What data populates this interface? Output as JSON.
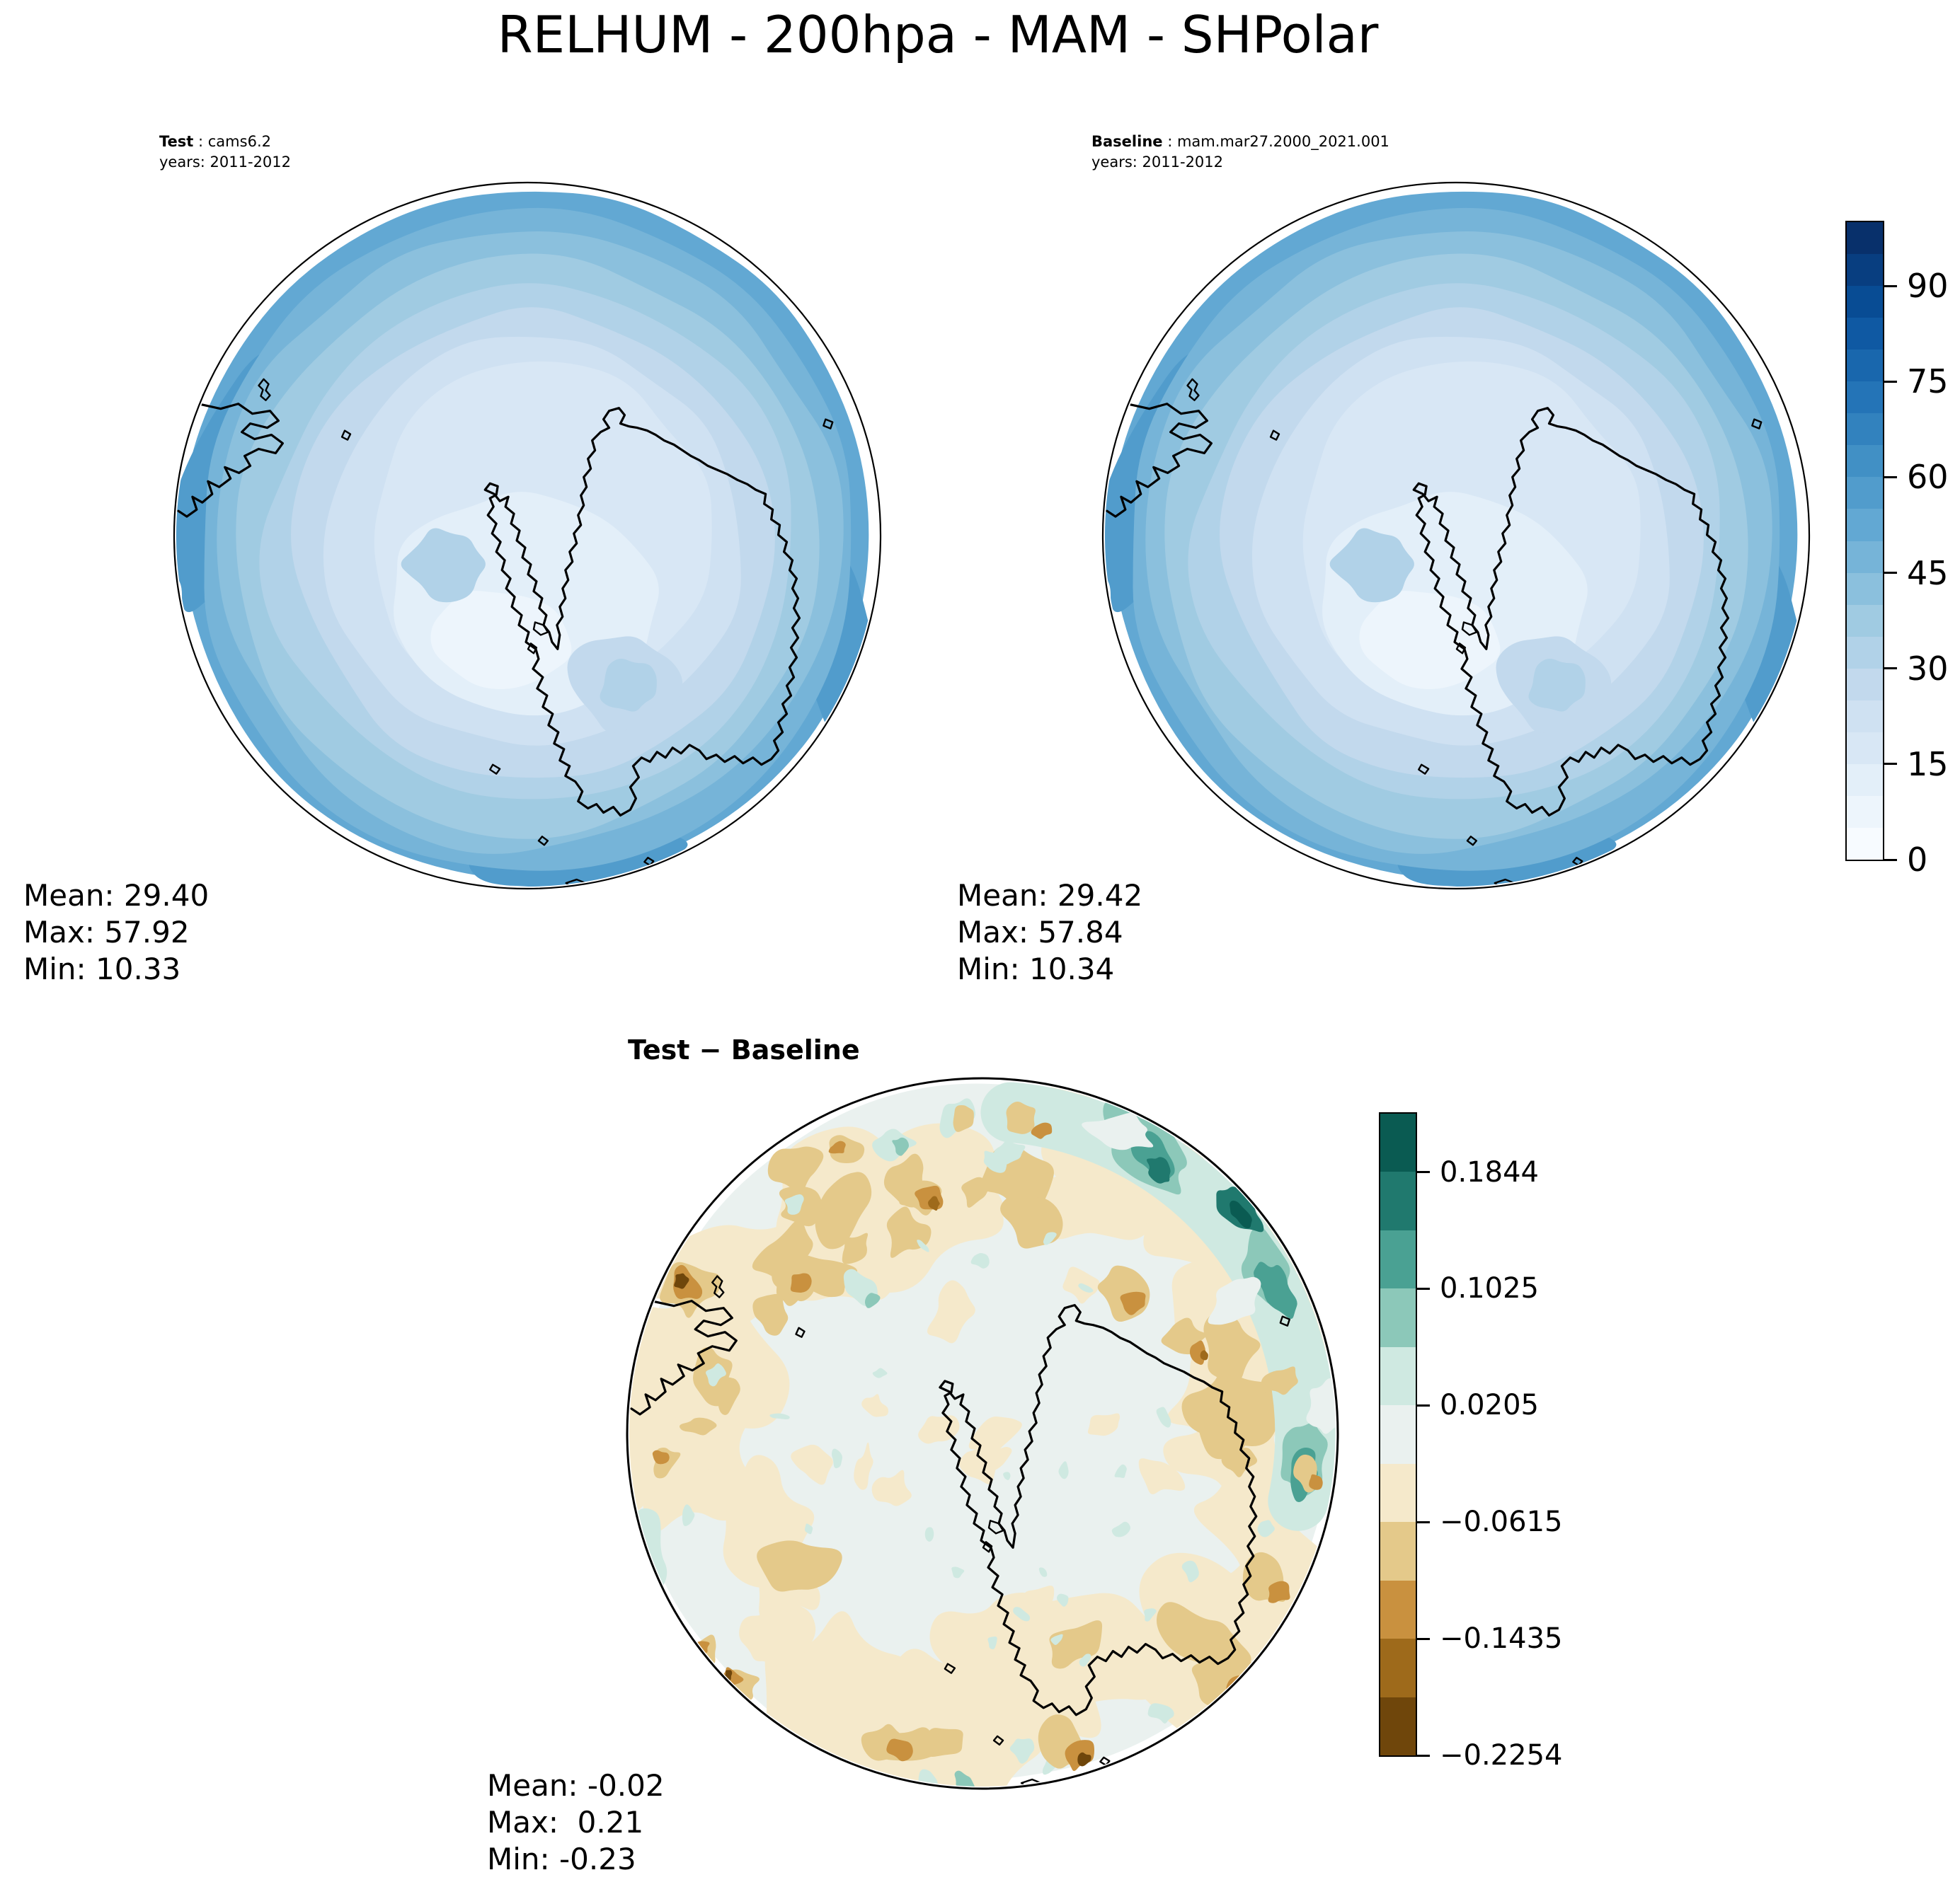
{
  "title": "RELHUM - 200hpa - MAM - SHPolar",
  "figure": {
    "variable": "RELHUM",
    "level": "200hpa",
    "season": "MAM",
    "region": "SHPolar"
  },
  "panels": {
    "test": {
      "label": "Test",
      "separator": " : ",
      "name": "cams6.2",
      "years": "years: 2011-2012",
      "stats": {
        "mean": "Mean: 29.40",
        "max": "Max: 57.92",
        "min": "Min: 10.33"
      }
    },
    "baseline": {
      "label": "Baseline",
      "separator": " : ",
      "name": "mam.mar27.2000_2021.001",
      "years": "years: 2011-2012",
      "stats": {
        "mean": "Mean: 29.42",
        "max": "Max: 57.84",
        "min": "Min: 10.34"
      }
    },
    "diff": {
      "title": "Test − Baseline",
      "stats": {
        "mean": "Mean: -0.02",
        "max": "Max:  0.21",
        "min": "Min: -0.23"
      }
    }
  },
  "colorbars": {
    "relhum": {
      "vmin": 0,
      "vmax": 100,
      "colors_top_to_bottom": [
        "#08306b",
        "#083e80",
        "#084c94",
        "#0f59a3",
        "#1967ad",
        "#2474b7",
        "#3282be",
        "#4190c5",
        "#519ccc",
        "#62a8d3",
        "#76b4d8",
        "#8bc0dd",
        "#a0cbe2",
        "#b1d2e8",
        "#c2d9ed",
        "#cfe1f2",
        "#d8e7f5",
        "#e3eff9",
        "#edf5fc",
        "#f7fbff"
      ],
      "ticks": [
        {
          "v": 90,
          "label": "90"
        },
        {
          "v": 75,
          "label": "75"
        },
        {
          "v": 60,
          "label": "60"
        },
        {
          "v": 45,
          "label": "45"
        },
        {
          "v": 30,
          "label": "30"
        },
        {
          "v": 15,
          "label": "15"
        },
        {
          "v": 0,
          "label": "0"
        }
      ]
    },
    "diff": {
      "vmin": -0.2254,
      "vmax": 0.2254,
      "colors_top_to_bottom": [
        "#0a5b52",
        "#20796e",
        "#4aa193",
        "#8cc8b9",
        "#cfe9e1",
        "#eaf1ef",
        "#f5e9cb",
        "#e4c98a",
        "#c9913f",
        "#9e6a1b",
        "#6f460b"
      ],
      "ticks": [
        {
          "v": 0.1844,
          "label": "0.1844"
        },
        {
          "v": 0.1025,
          "label": "0.1025"
        },
        {
          "v": 0.0205,
          "label": "0.0205"
        },
        {
          "v": -0.0615,
          "label": "−0.0615"
        },
        {
          "v": -0.1435,
          "label": "−0.1435"
        },
        {
          "v": -0.2254,
          "label": "−0.2254"
        }
      ]
    }
  },
  "chart_data": [
    {
      "type": "heatmap",
      "panel": "test",
      "title": "Test : cams6.2",
      "subtitle": "years: 2011-2012",
      "projection": "south-polar stereographic map, Antarctica coastline",
      "colormap": "Blues (20 discrete levels)",
      "value_range": [
        0,
        100
      ],
      "colorbar_ticks": [
        0,
        15,
        30,
        45,
        60,
        75,
        90
      ],
      "stats": {
        "mean": 29.4,
        "max": 57.92,
        "min": 10.33
      }
    },
    {
      "type": "heatmap",
      "panel": "baseline",
      "title": "Baseline : mam.mar27.2000_2021.001",
      "subtitle": "years: 2011-2012",
      "projection": "south-polar stereographic map, Antarctica coastline",
      "colormap": "Blues (20 discrete levels)",
      "value_range": [
        0,
        100
      ],
      "colorbar_ticks": [
        0,
        15,
        30,
        45,
        60,
        75,
        90
      ],
      "stats": {
        "mean": 29.42,
        "max": 57.84,
        "min": 10.34
      }
    },
    {
      "type": "heatmap",
      "panel": "difference",
      "title": "Test − Baseline",
      "projection": "south-polar stereographic map, Antarctica coastline",
      "colormap": "brown–white–teal diverging (11 discrete levels)",
      "value_range": [
        -0.2254,
        0.2254
      ],
      "colorbar_ticks": [
        0.1844,
        0.1025,
        0.0205,
        -0.0615,
        -0.1435,
        -0.2254
      ],
      "stats": {
        "mean": -0.02,
        "max": 0.21,
        "min": -0.23
      }
    }
  ]
}
